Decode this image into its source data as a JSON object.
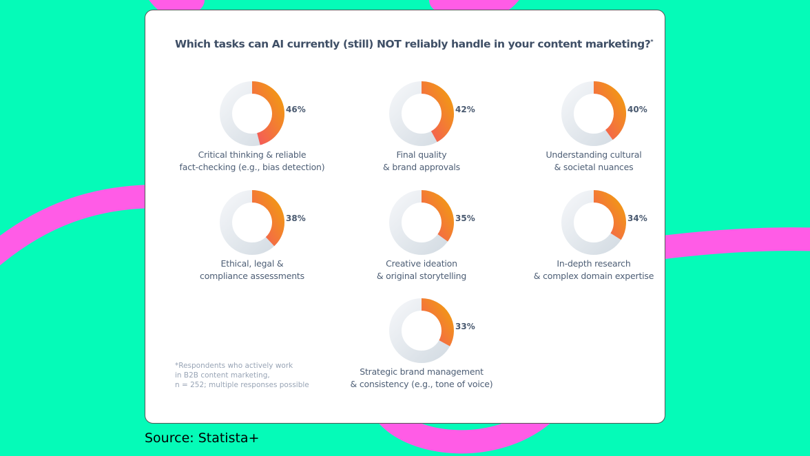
{
  "colors": {
    "background": "#05fbb8",
    "swoosh": "#ff5ce6",
    "donut_fill_start": "#f4555f",
    "donut_fill_end": "#f29a12",
    "donut_track": "#e3e8ed"
  },
  "chart_data": {
    "type": "pie",
    "variant": "donut",
    "title": "Which tasks can AI currently (still) NOT reliably handle in your content marketing?",
    "title_mark": "*",
    "items": [
      {
        "label": [
          "Critical thinking & reliable",
          "fact-checking (e.g., bias detection)"
        ],
        "value": 46,
        "value_label": "46%"
      },
      {
        "label": [
          "Final quality",
          "& brand approvals"
        ],
        "value": 42,
        "value_label": "42%"
      },
      {
        "label": [
          "Understanding cultural",
          "& societal nuances"
        ],
        "value": 40,
        "value_label": "40%"
      },
      {
        "label": [
          "Ethical, legal &",
          "compliance assessments"
        ],
        "value": 38,
        "value_label": "38%"
      },
      {
        "label": [
          "Creative ideation",
          "& original storytelling"
        ],
        "value": 35,
        "value_label": "35%"
      },
      {
        "label": [
          "In-depth research",
          "& complex domain expertise"
        ],
        "value": 34,
        "value_label": "34%"
      },
      {
        "label": [
          "Strategic brand management",
          "& consistency (e.g., tone of voice)"
        ],
        "value": 33,
        "value_label": "33%"
      }
    ],
    "note": "*Respondents who actively work\nin B2B content marketing,\nn = 252; multiple responses possible"
  },
  "source": "Source: Statista+"
}
